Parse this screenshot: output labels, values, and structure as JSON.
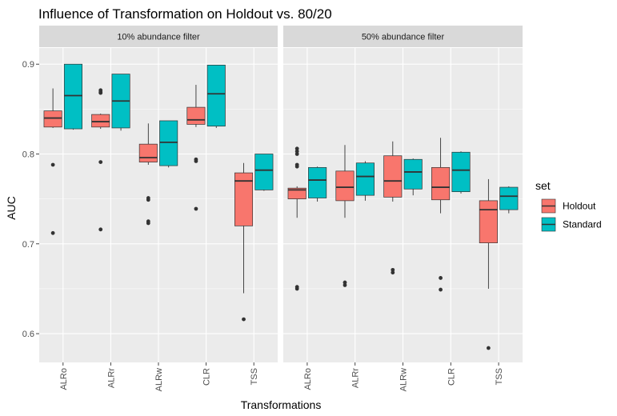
{
  "chart_data": {
    "type": "boxplot",
    "title": "Influence of Transformation on Holdout vs. 80/20",
    "xlabel": "Transformations",
    "ylabel": "AUC",
    "ylim": [
      0.568,
      0.918
    ],
    "yticks": [
      0.6,
      0.7,
      0.8,
      0.9
    ],
    "ytick_labels": [
      "0.6",
      "0.7",
      "0.8",
      "0.9"
    ],
    "categories": [
      "ALRo",
      "ALRr",
      "ALRw",
      "CLR",
      "TSS"
    ],
    "legend": {
      "title": "set",
      "position": "right",
      "entries": [
        {
          "name": "Holdout",
          "color": "#F8766D"
        },
        {
          "name": "Standard",
          "color": "#00BFC4"
        }
      ]
    },
    "grid": true,
    "panels": [
      {
        "label": "10% abundance filter",
        "groups": [
          {
            "category": "ALRo",
            "set": "Holdout",
            "whisker_low": 0.829,
            "q1": 0.83,
            "median": 0.84,
            "q3": 0.848,
            "whisker_high": 0.873,
            "outliers": [
              0.788,
              0.712
            ]
          },
          {
            "category": "ALRo",
            "set": "Standard",
            "whisker_low": 0.827,
            "q1": 0.828,
            "median": 0.865,
            "q3": 0.9,
            "whisker_high": 0.9,
            "outliers": []
          },
          {
            "category": "ALRr",
            "set": "Holdout",
            "whisker_low": 0.828,
            "q1": 0.83,
            "median": 0.836,
            "q3": 0.844,
            "whisker_high": 0.845,
            "outliers": [
              0.871,
              0.869,
              0.868,
              0.791,
              0.716
            ]
          },
          {
            "category": "ALRr",
            "set": "Standard",
            "whisker_low": 0.826,
            "q1": 0.829,
            "median": 0.859,
            "q3": 0.889,
            "whisker_high": 0.889,
            "outliers": []
          },
          {
            "category": "ALRw",
            "set": "Holdout",
            "whisker_low": 0.788,
            "q1": 0.791,
            "median": 0.796,
            "q3": 0.811,
            "whisker_high": 0.834,
            "outliers": [
              0.751,
              0.749,
              0.725,
              0.723
            ]
          },
          {
            "category": "ALRw",
            "set": "Standard",
            "whisker_low": 0.785,
            "q1": 0.787,
            "median": 0.813,
            "q3": 0.837,
            "whisker_high": 0.837,
            "outliers": []
          },
          {
            "category": "CLR",
            "set": "Holdout",
            "whisker_low": 0.83,
            "q1": 0.833,
            "median": 0.838,
            "q3": 0.852,
            "whisker_high": 0.877,
            "outliers": [
              0.794,
              0.792,
              0.739
            ]
          },
          {
            "category": "CLR",
            "set": "Standard",
            "whisker_low": 0.829,
            "q1": 0.831,
            "median": 0.867,
            "q3": 0.899,
            "whisker_high": 0.899,
            "outliers": []
          },
          {
            "category": "TSS",
            "set": "Holdout",
            "whisker_low": 0.645,
            "q1": 0.72,
            "median": 0.77,
            "q3": 0.779,
            "whisker_high": 0.79,
            "outliers": [
              0.616
            ]
          },
          {
            "category": "TSS",
            "set": "Standard",
            "whisker_low": 0.759,
            "q1": 0.76,
            "median": 0.782,
            "q3": 0.8,
            "whisker_high": 0.8,
            "outliers": []
          }
        ]
      },
      {
        "label": "50% abundance filter",
        "groups": [
          {
            "category": "ALRo",
            "set": "Holdout",
            "whisker_low": 0.729,
            "q1": 0.75,
            "median": 0.76,
            "q3": 0.762,
            "whisker_high": 0.764,
            "outliers": [
              0.806,
              0.803,
              0.8,
              0.788,
              0.786,
              0.652,
              0.65
            ]
          },
          {
            "category": "ALRo",
            "set": "Standard",
            "whisker_low": 0.747,
            "q1": 0.751,
            "median": 0.771,
            "q3": 0.785,
            "whisker_high": 0.786,
            "outliers": []
          },
          {
            "category": "ALRr",
            "set": "Holdout",
            "whisker_low": 0.729,
            "q1": 0.748,
            "median": 0.763,
            "q3": 0.781,
            "whisker_high": 0.81,
            "outliers": [
              0.657,
              0.654
            ]
          },
          {
            "category": "ALRr",
            "set": "Standard",
            "whisker_low": 0.748,
            "q1": 0.754,
            "median": 0.775,
            "q3": 0.79,
            "whisker_high": 0.792,
            "outliers": []
          },
          {
            "category": "ALRw",
            "set": "Holdout",
            "whisker_low": 0.747,
            "q1": 0.752,
            "median": 0.77,
            "q3": 0.798,
            "whisker_high": 0.814,
            "outliers": [
              0.671,
              0.668
            ]
          },
          {
            "category": "ALRw",
            "set": "Standard",
            "whisker_low": 0.754,
            "q1": 0.761,
            "median": 0.78,
            "q3": 0.794,
            "whisker_high": 0.795,
            "outliers": []
          },
          {
            "category": "CLR",
            "set": "Holdout",
            "whisker_low": 0.734,
            "q1": 0.749,
            "median": 0.763,
            "q3": 0.785,
            "whisker_high": 0.818,
            "outliers": [
              0.662,
              0.649
            ]
          },
          {
            "category": "CLR",
            "set": "Standard",
            "whisker_low": 0.756,
            "q1": 0.758,
            "median": 0.782,
            "q3": 0.802,
            "whisker_high": 0.803,
            "outliers": []
          },
          {
            "category": "TSS",
            "set": "Holdout",
            "whisker_low": 0.65,
            "q1": 0.701,
            "median": 0.738,
            "q3": 0.748,
            "whisker_high": 0.772,
            "outliers": [
              0.584
            ]
          },
          {
            "category": "TSS",
            "set": "Standard",
            "whisker_low": 0.734,
            "q1": 0.738,
            "median": 0.753,
            "q3": 0.763,
            "whisker_high": 0.764,
            "outliers": []
          }
        ]
      }
    ]
  }
}
